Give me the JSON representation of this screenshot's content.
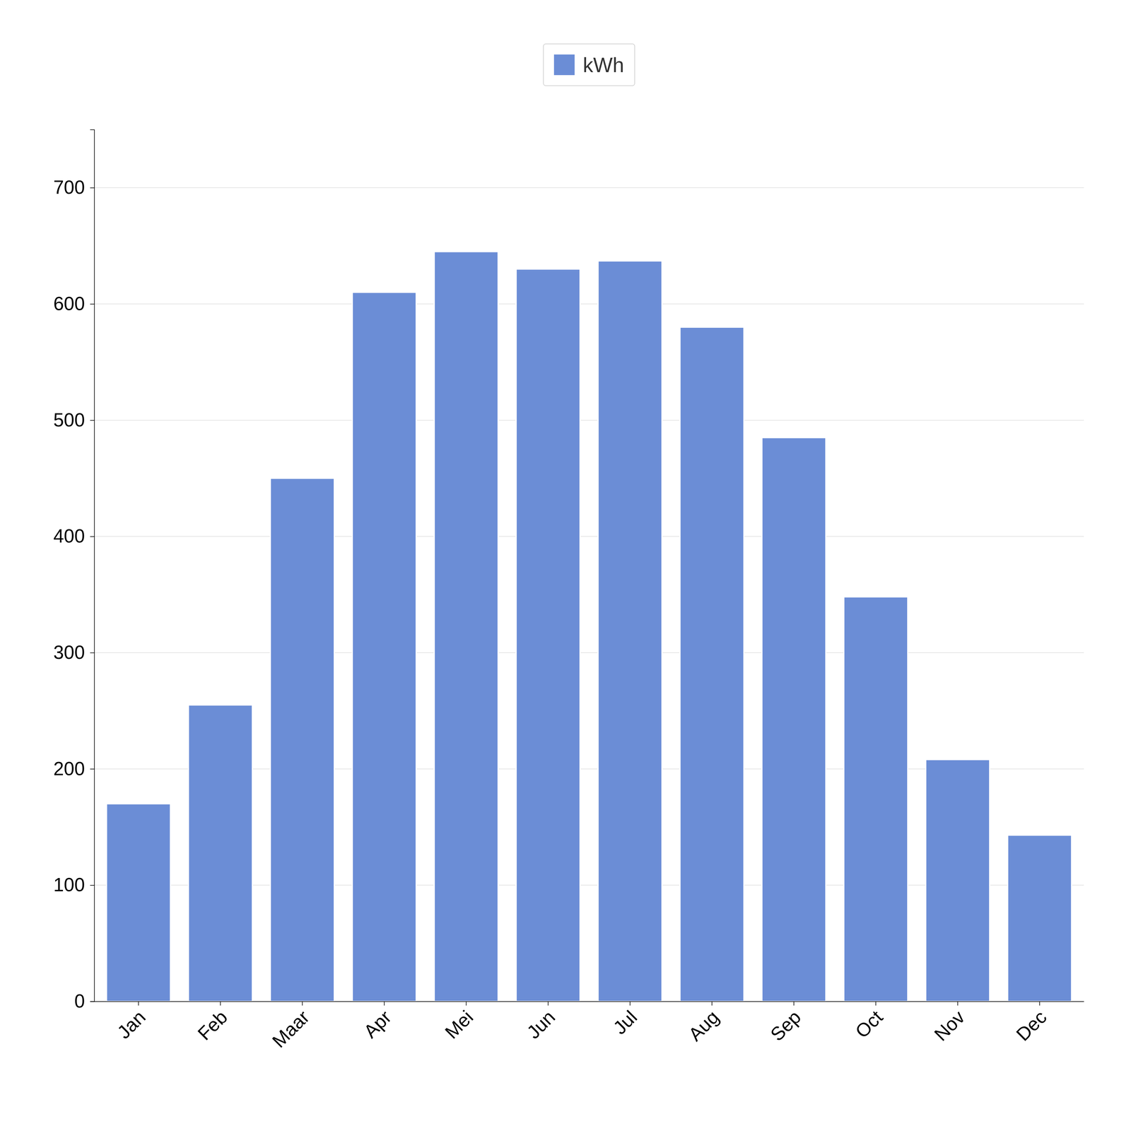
{
  "chart_data": {
    "type": "bar",
    "categories": [
      "Jan",
      "Feb",
      "Maar",
      "Apr",
      "Mei",
      "Jun",
      "Jul",
      "Aug",
      "Sep",
      "Oct",
      "Nov",
      "Dec"
    ],
    "series": [
      {
        "name": "kWh",
        "color": "#6b8dd6",
        "values": [
          170,
          255,
          450,
          610,
          645,
          630,
          637,
          580,
          485,
          348,
          208,
          143
        ]
      }
    ],
    "ylim": [
      0,
      750
    ],
    "yticks": [
      0,
      100,
      200,
      300,
      400,
      500,
      600,
      700
    ],
    "grid": true,
    "legend": "top"
  }
}
